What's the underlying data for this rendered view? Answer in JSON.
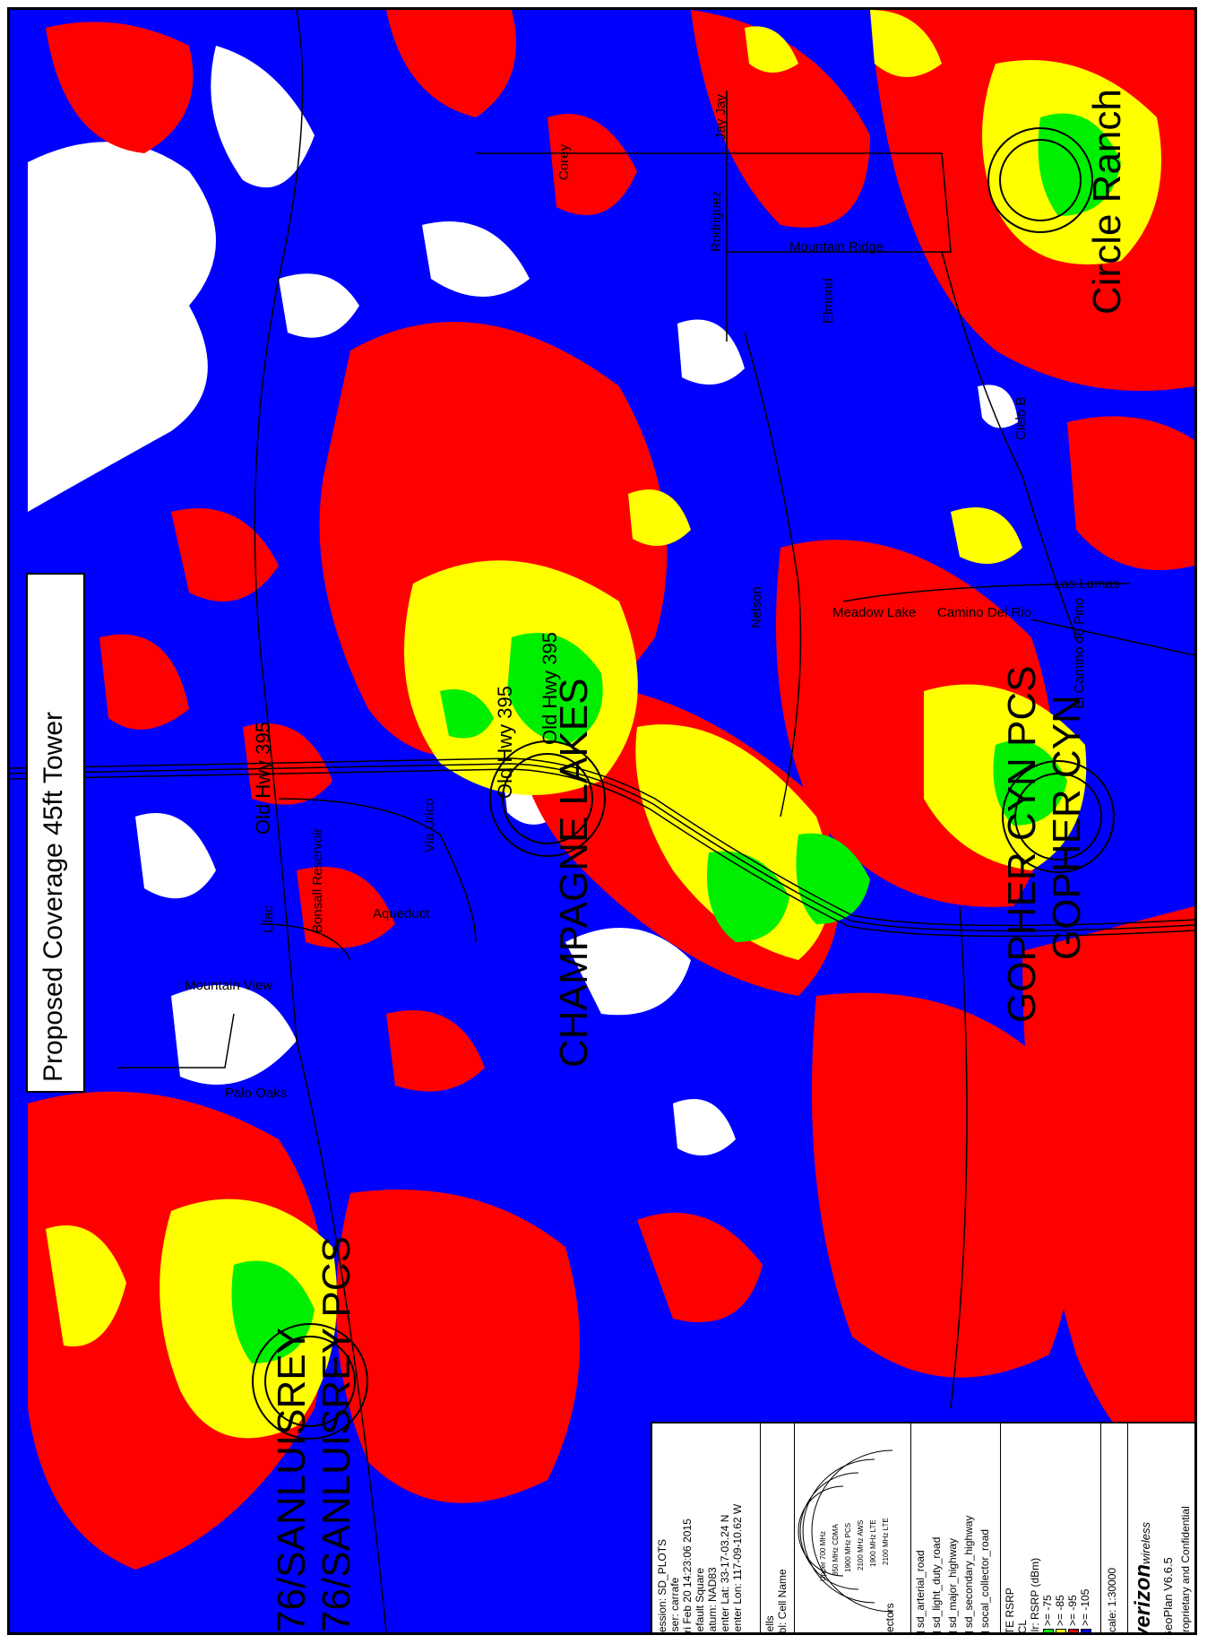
{
  "title": "Proposed Coverage 45ft Tower",
  "colors": {
    "rsrp_ge_75": "#00ee00",
    "rsrp_ge_85": "#ffff00",
    "rsrp_ge_95": "#ff0000",
    "rsrp_ge_105": "#0000ff",
    "no_coverage": "#ffffff"
  },
  "sites": [
    {
      "label": "Circle Ranch"
    },
    {
      "label": "CHAMPAGNE LAKES"
    },
    {
      "label": "GOPHER CYN PCS"
    },
    {
      "label": "GOPHER CYN"
    },
    {
      "label": "76/SANLUISREY"
    },
    {
      "label": "76/SANLUISREY PCS"
    }
  ],
  "roads": [
    "Old Hwy 395",
    "Old Hwy 395",
    "Old Hwy 395",
    "Corey",
    "Jay Jay",
    "Rodriguez",
    "Mountain Ridge",
    "Elmond",
    "Cielo B",
    "Nelson",
    "Meadow Lake",
    "Camino Del Rio",
    "Las Lomas",
    "El Camino de Pino",
    "Aqueduct",
    "Bonsall Reservoir",
    "Via Urico",
    "Lilac",
    "Mountain View",
    "Palo Oaks"
  ],
  "legend": {
    "info": [
      "Session: SD_PLOTS",
      "User: carrafe",
      "Fri Feb 20 14:23:06 2015",
      "Default Square",
      "Datum: NAD83",
      "Center Lat: 33-17-03.24 N",
      "Center Lon: 117-09-10.62 W"
    ],
    "cells_title": "Cells",
    "cells_label": "Lbl: Cell Name",
    "sectors_title": "Sectors",
    "sector_bands": [
      "Upper 700 MHz",
      "850 MHz CDMA",
      "1900 MHz PCS",
      "2100 MHz AWS",
      "1900 MHz LTE",
      "2100 MHz LTE"
    ],
    "road_layers": [
      "sd_arterial_road",
      "sd_light_duty_road",
      "sd_major_highway",
      "sd_secondary_highway",
      "socal_collector_road"
    ],
    "lte_title": "LTE RSRP",
    "lte_cl": "7CL",
    "lte_clr": "Clr: RSRP (dBm)",
    "rsrp_levels": [
      ">= -75",
      ">= -85",
      ">= -95",
      ">= -105"
    ],
    "scale": "Scale: 1:30000",
    "brand": "verizon",
    "brand_suffix": "wireless",
    "version": "GeoPlan V6.6.5",
    "confidential": "Proprietary and Confidential"
  }
}
